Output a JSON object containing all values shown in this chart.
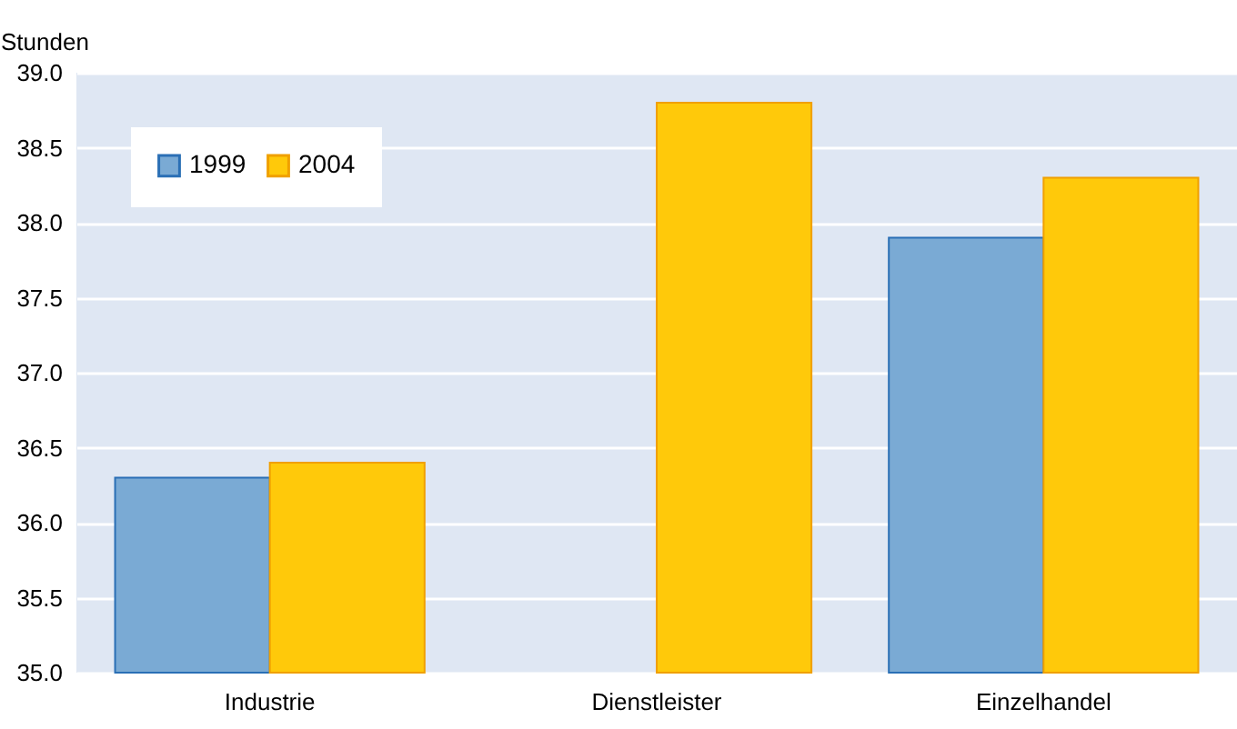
{
  "chart_data": {
    "type": "bar",
    "ylabel": "Stunden",
    "categories": [
      "Industrie",
      "Dienstleister",
      "Einzelhandel"
    ],
    "series": [
      {
        "name": "1999",
        "color": "#7aaad4",
        "values": [
          36.3,
          null,
          37.9
        ]
      },
      {
        "name": "2004",
        "color": "#ffc90a",
        "values": [
          36.4,
          38.8,
          38.3
        ]
      }
    ],
    "ylim": [
      35,
      39
    ],
    "yticks": [
      {
        "value": 35,
        "label": "35.0"
      },
      {
        "value": 35.5,
        "label": "35.5"
      },
      {
        "value": 36,
        "label": "36.0"
      },
      {
        "value": 36.5,
        "label": "36.5"
      },
      {
        "value": 37,
        "label": "37.0"
      },
      {
        "value": 37.5,
        "label": "37.5"
      },
      {
        "value": 38,
        "label": "38.0"
      },
      {
        "value": 38.5,
        "label": "38.5"
      },
      {
        "value": 39,
        "label": "39.0"
      }
    ],
    "grid": "y",
    "legend": "top left"
  }
}
